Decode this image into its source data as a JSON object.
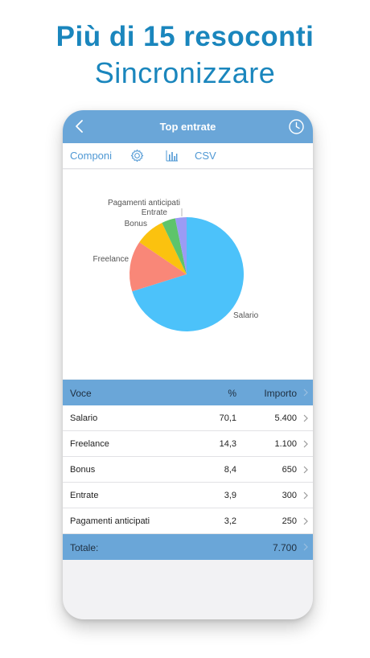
{
  "promo": {
    "headline": "Più di 15 resoconti",
    "subheadline": "Sincronizzare"
  },
  "nav": {
    "title": "Top entrate",
    "back_icon": "chevron-left-icon",
    "history_icon": "clock-icon"
  },
  "toolbar": {
    "componi_label": "Componi",
    "settings_icon": "gear-icon",
    "chart_icon": "bar-chart-icon",
    "csv_label": "CSV"
  },
  "chart_data": {
    "type": "pie",
    "categories": [
      "Salario",
      "Freelance",
      "Bonus",
      "Entrate",
      "Pagamenti anticipati"
    ],
    "values": [
      70.1,
      14.3,
      8.4,
      3.9,
      3.2
    ],
    "colors": [
      "#4cc2fa",
      "#f98778",
      "#fbc20f",
      "#5ec46b",
      "#9b9bf4"
    ],
    "title": "",
    "legend": "slice-labels"
  },
  "table": {
    "headers": {
      "voce": "Voce",
      "pct": "%",
      "importo": "Importo"
    },
    "rows": [
      {
        "voce": "Salario",
        "pct": "70,1",
        "importo": "5.400"
      },
      {
        "voce": "Freelance",
        "pct": "14,3",
        "importo": "1.100"
      },
      {
        "voce": "Bonus",
        "pct": "8,4",
        "importo": "650"
      },
      {
        "voce": "Entrate",
        "pct": "3,9",
        "importo": "300"
      },
      {
        "voce": "Pagamenti anticipati",
        "pct": "3,2",
        "importo": "250"
      }
    ],
    "total": {
      "label": "Totale:",
      "importo": "7.700"
    }
  },
  "colors": {
    "accent": "#1a86bd",
    "nav_bar": "#6aa6d8",
    "link": "#4f98d4"
  }
}
